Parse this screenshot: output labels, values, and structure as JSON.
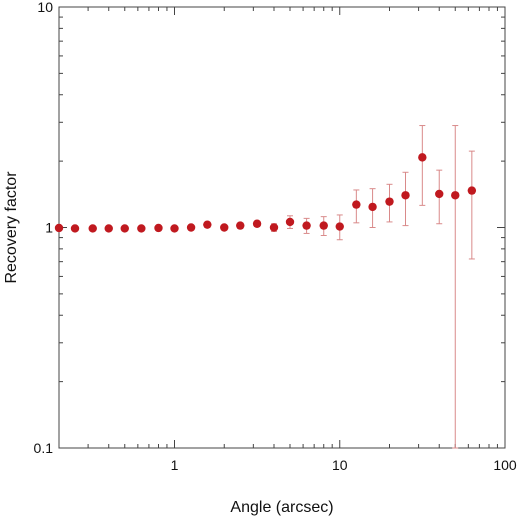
{
  "chart_data": {
    "type": "scatter",
    "xlabel": "Angle (arcsec)",
    "ylabel": "Recovery factor",
    "xscale": "log",
    "yscale": "log",
    "xlim": [
      0.2,
      100
    ],
    "ylim": [
      0.1,
      10
    ],
    "x_ticks": [
      {
        "value": 1,
        "label": "1"
      },
      {
        "value": 10,
        "label": "10"
      },
      {
        "value": 100,
        "label": "100"
      }
    ],
    "y_ticks": [
      {
        "value": 0.1,
        "label": "0.1"
      },
      {
        "value": 1,
        "label": "1"
      },
      {
        "value": 10,
        "label": "10"
      }
    ],
    "grid": false,
    "legend": "none",
    "marker_color": "#c0191f",
    "errorbar_color": "#d98a8a",
    "points": [
      {
        "x": 0.2,
        "y": 0.995,
        "yerr_low": 0.975,
        "yerr_high": 1.015
      },
      {
        "x": 0.25,
        "y": 0.99,
        "yerr_low": 0.975,
        "yerr_high": 1.005
      },
      {
        "x": 0.32,
        "y": 0.99,
        "yerr_low": 0.975,
        "yerr_high": 1.005
      },
      {
        "x": 0.4,
        "y": 0.99,
        "yerr_low": 0.975,
        "yerr_high": 1.005
      },
      {
        "x": 0.5,
        "y": 0.99,
        "yerr_low": 0.975,
        "yerr_high": 1.005
      },
      {
        "x": 0.63,
        "y": 0.99,
        "yerr_low": 0.975,
        "yerr_high": 1.005
      },
      {
        "x": 0.8,
        "y": 0.995,
        "yerr_low": 0.98,
        "yerr_high": 1.01
      },
      {
        "x": 1.0,
        "y": 0.99,
        "yerr_low": 0.975,
        "yerr_high": 1.005
      },
      {
        "x": 1.26,
        "y": 1.0,
        "yerr_low": 0.985,
        "yerr_high": 1.015
      },
      {
        "x": 1.58,
        "y": 1.03,
        "yerr_low": 1.01,
        "yerr_high": 1.05
      },
      {
        "x": 2.0,
        "y": 1.0,
        "yerr_low": 0.985,
        "yerr_high": 1.015
      },
      {
        "x": 2.5,
        "y": 1.02,
        "yerr_low": 1.0,
        "yerr_high": 1.04
      },
      {
        "x": 3.16,
        "y": 1.04,
        "yerr_low": 1.01,
        "yerr_high": 1.07
      },
      {
        "x": 4.0,
        "y": 1.0,
        "yerr_low": 0.96,
        "yerr_high": 1.04
      },
      {
        "x": 5.0,
        "y": 1.06,
        "yerr_low": 0.99,
        "yerr_high": 1.13
      },
      {
        "x": 6.3,
        "y": 1.02,
        "yerr_low": 0.94,
        "yerr_high": 1.1
      },
      {
        "x": 8.0,
        "y": 1.02,
        "yerr_low": 0.92,
        "yerr_high": 1.12
      },
      {
        "x": 10.0,
        "y": 1.01,
        "yerr_low": 0.88,
        "yerr_high": 1.14
      },
      {
        "x": 12.6,
        "y": 1.27,
        "yerr_low": 1.05,
        "yerr_high": 1.48
      },
      {
        "x": 15.8,
        "y": 1.24,
        "yerr_low": 1.0,
        "yerr_high": 1.5
      },
      {
        "x": 20.0,
        "y": 1.31,
        "yerr_low": 1.06,
        "yerr_high": 1.57
      },
      {
        "x": 25.0,
        "y": 1.4,
        "yerr_low": 1.02,
        "yerr_high": 1.78
      },
      {
        "x": 31.6,
        "y": 2.08,
        "yerr_low": 1.26,
        "yerr_high": 2.9
      },
      {
        "x": 40.0,
        "y": 1.42,
        "yerr_low": 1.04,
        "yerr_high": 1.82
      },
      {
        "x": 50.0,
        "y": 1.4,
        "yerr_low": 0.1,
        "yerr_high": 2.9
      },
      {
        "x": 63.0,
        "y": 1.47,
        "yerr_low": 0.72,
        "yerr_high": 2.22
      }
    ]
  }
}
